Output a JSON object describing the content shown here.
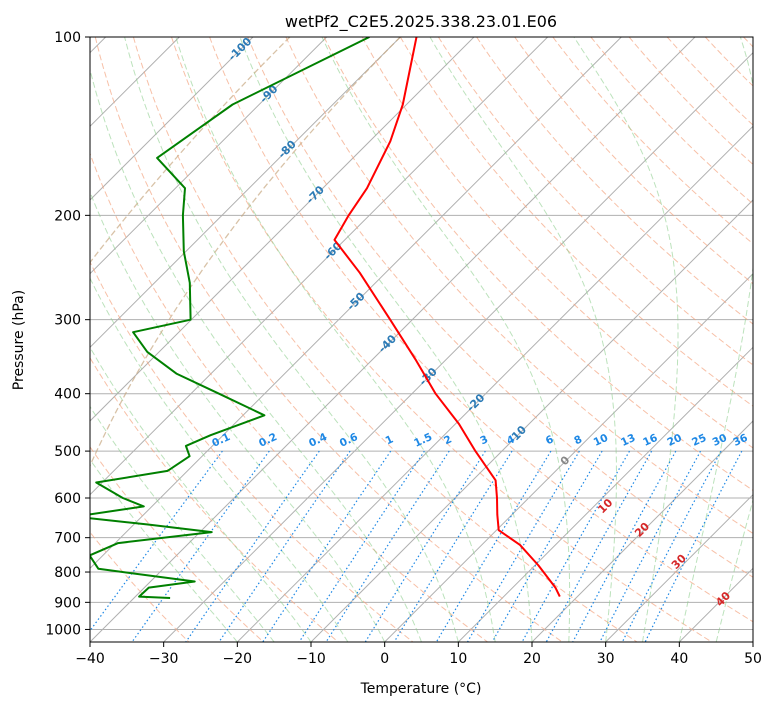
{
  "chart_data": {
    "type": "skew-t",
    "title": "wetPf2_C2E5.2025.338.23.01.E06",
    "xlabel": "Temperature (°C)",
    "ylabel": "Pressure (hPa)",
    "xlim": [
      -40,
      50
    ],
    "ylim_hpa": [
      1050,
      100
    ],
    "y_scale": "log",
    "grid": true,
    "x_ticks": [
      -40,
      -30,
      -20,
      -10,
      0,
      10,
      20,
      30,
      40,
      50
    ],
    "y_ticks": [
      100,
      200,
      300,
      400,
      500,
      600,
      700,
      800,
      900,
      1000
    ],
    "tick_labels": {
      "x": [
        "−40",
        "−30",
        "−20",
        "−10",
        "0",
        "10",
        "20",
        "30",
        "40",
        "50"
      ],
      "y": [
        "100",
        "200",
        "300",
        "400",
        "500",
        "600",
        "700",
        "800",
        "900",
        "1000"
      ]
    },
    "isotherm_labels": [
      {
        "text": "-100",
        "p": 105
      },
      {
        "text": "-90",
        "p": 125
      },
      {
        "text": "-80",
        "p": 155
      },
      {
        "text": "-70",
        "p": 185
      },
      {
        "text": "-60",
        "p": 230
      },
      {
        "text": "-50",
        "p": 280
      },
      {
        "text": "-40",
        "p": 330
      },
      {
        "text": "-30",
        "p": 375
      },
      {
        "text": "-20",
        "p": 415
      },
      {
        "text": "-10",
        "p": 470
      },
      {
        "text": "0",
        "p": 520
      }
    ],
    "warm_isotherm_labels": [
      {
        "text": "10",
        "t": 30,
        "p": 620
      },
      {
        "text": "20",
        "t": 35,
        "p": 680
      },
      {
        "text": "30",
        "t": 40,
        "p": 770
      },
      {
        "text": "40",
        "t": 46,
        "p": 890
      }
    ],
    "mixing_ratio_labels": [
      "0.1",
      "0.2",
      "0.4",
      "0.6",
      "1",
      "1.5",
      "2",
      "3",
      "4",
      "6",
      "8",
      "10",
      "13",
      "16",
      "20",
      "25",
      "30",
      "36"
    ],
    "series": [
      {
        "color": "#ff0000",
        "points": [
          {
            "p": 100,
            "t": -77.8
          },
          {
            "p": 130,
            "t": -70.5
          },
          {
            "p": 150,
            "t": -67.2
          },
          {
            "p": 180,
            "t": -64.0
          },
          {
            "p": 200,
            "t": -62.8
          },
          {
            "p": 220,
            "t": -61.4
          },
          {
            "p": 250,
            "t": -53.5
          },
          {
            "p": 300,
            "t": -43.0
          },
          {
            "p": 350,
            "t": -34.2
          },
          {
            "p": 400,
            "t": -26.8
          },
          {
            "p": 450,
            "t": -19.5
          },
          {
            "p": 500,
            "t": -13.6
          },
          {
            "p": 560,
            "t": -6.9
          },
          {
            "p": 600,
            "t": -4.3
          },
          {
            "p": 640,
            "t": -2.0
          },
          {
            "p": 680,
            "t": 0.3
          },
          {
            "p": 720,
            "t": 5.2
          },
          {
            "p": 780,
            "t": 10.5
          },
          {
            "p": 850,
            "t": 15.8
          },
          {
            "p": 880,
            "t": 17.6
          }
        ]
      },
      {
        "color": "#008000",
        "points": [
          {
            "p": 100,
            "t": -84.2
          },
          {
            "p": 130,
            "t": -93.6
          },
          {
            "p": 160,
            "t": -96.6
          },
          {
            "p": 180,
            "t": -88.7
          },
          {
            "p": 200,
            "t": -85.3
          },
          {
            "p": 230,
            "t": -80.3
          },
          {
            "p": 260,
            "t": -75.2
          },
          {
            "p": 300,
            "t": -70.1
          },
          {
            "p": 315,
            "t": -76.2
          },
          {
            "p": 340,
            "t": -71.6
          },
          {
            "p": 370,
            "t": -64.7
          },
          {
            "p": 400,
            "t": -56.2
          },
          {
            "p": 435,
            "t": -47.1
          },
          {
            "p": 470,
            "t": -51.7
          },
          {
            "p": 490,
            "t": -53.6
          },
          {
            "p": 510,
            "t": -51.7
          },
          {
            "p": 540,
            "t": -52.7
          },
          {
            "p": 565,
            "t": -60.8
          },
          {
            "p": 600,
            "t": -55.1
          },
          {
            "p": 620,
            "t": -51.1
          },
          {
            "p": 645,
            "t": -59.1
          },
          {
            "p": 665,
            "t": -48.1
          },
          {
            "p": 685,
            "t": -38.4
          },
          {
            "p": 715,
            "t": -49.6
          },
          {
            "p": 750,
            "t": -51.8
          },
          {
            "p": 790,
            "t": -48.8
          },
          {
            "p": 830,
            "t": -34.0
          },
          {
            "p": 850,
            "t": -39.4
          },
          {
            "p": 880,
            "t": -39.5
          },
          {
            "p": 885,
            "t": -35.1
          }
        ]
      }
    ]
  }
}
